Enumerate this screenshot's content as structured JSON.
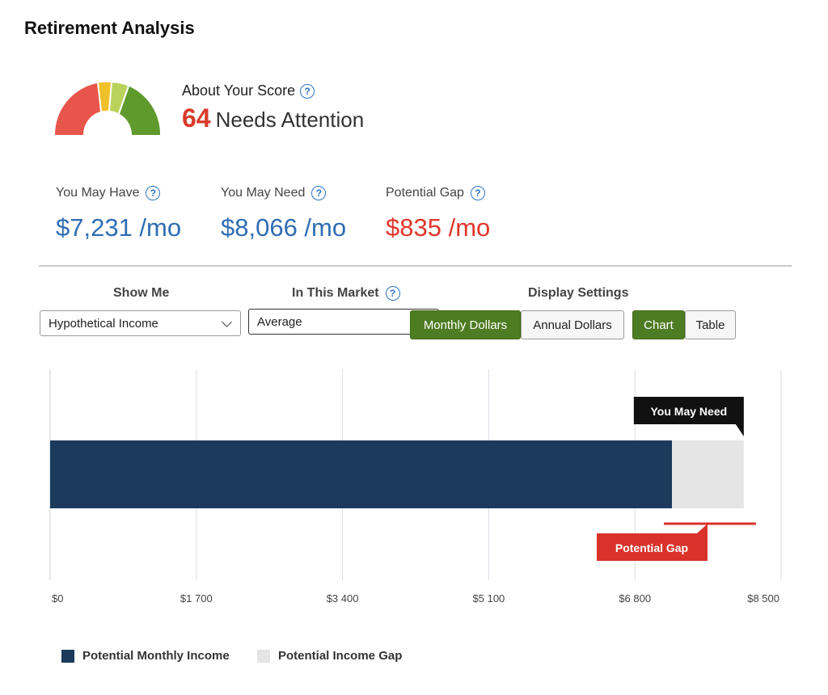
{
  "page": {
    "title": "Retirement Analysis"
  },
  "score": {
    "about_label": "About Your Score",
    "value": "64",
    "status": "Needs Attention",
    "gauge_colors": [
      "#e8554a",
      "#f2c02a",
      "#b9d25a",
      "#5f9a2c"
    ]
  },
  "metrics": [
    {
      "label": "You May Have",
      "value": "$7,231 /mo"
    },
    {
      "label": "You May Need",
      "value": "$8,066 /mo"
    },
    {
      "label": "Potential Gap",
      "value": "$835 /mo"
    }
  ],
  "controls": {
    "show_me": {
      "label": "Show Me",
      "selected": "Hypothetical Income"
    },
    "market": {
      "label": "In This Market",
      "selected": "Average"
    },
    "display": {
      "label": "Display Settings",
      "monthly": "Monthly Dollars",
      "annual": "Annual Dollars",
      "chart": "Chart",
      "table": "Table"
    }
  },
  "colors": {
    "accent_green": "#4e7c22",
    "bar_navy": "#1b3a5c",
    "gap_gray": "#e5e5e5",
    "gap_red": "#d9322a",
    "link_blue": "#2f6db3"
  },
  "chart_data": {
    "type": "bar",
    "orientation": "horizontal",
    "stacked": true,
    "x_ticks": [
      "$0",
      "$1 700",
      "$3 400",
      "$5 100",
      "$6 800",
      "$8 500"
    ],
    "xlim": [
      0,
      8500
    ],
    "series": [
      {
        "name": "Potential Monthly Income",
        "values": [
          7231
        ],
        "color": "#1b3a5c"
      },
      {
        "name": "Potential Income Gap",
        "values": [
          835
        ],
        "color": "#e5e5e5"
      }
    ],
    "annotations": {
      "need": "You May Need",
      "gap": "Potential Gap"
    },
    "grid": true,
    "legend": "bottom-left"
  }
}
